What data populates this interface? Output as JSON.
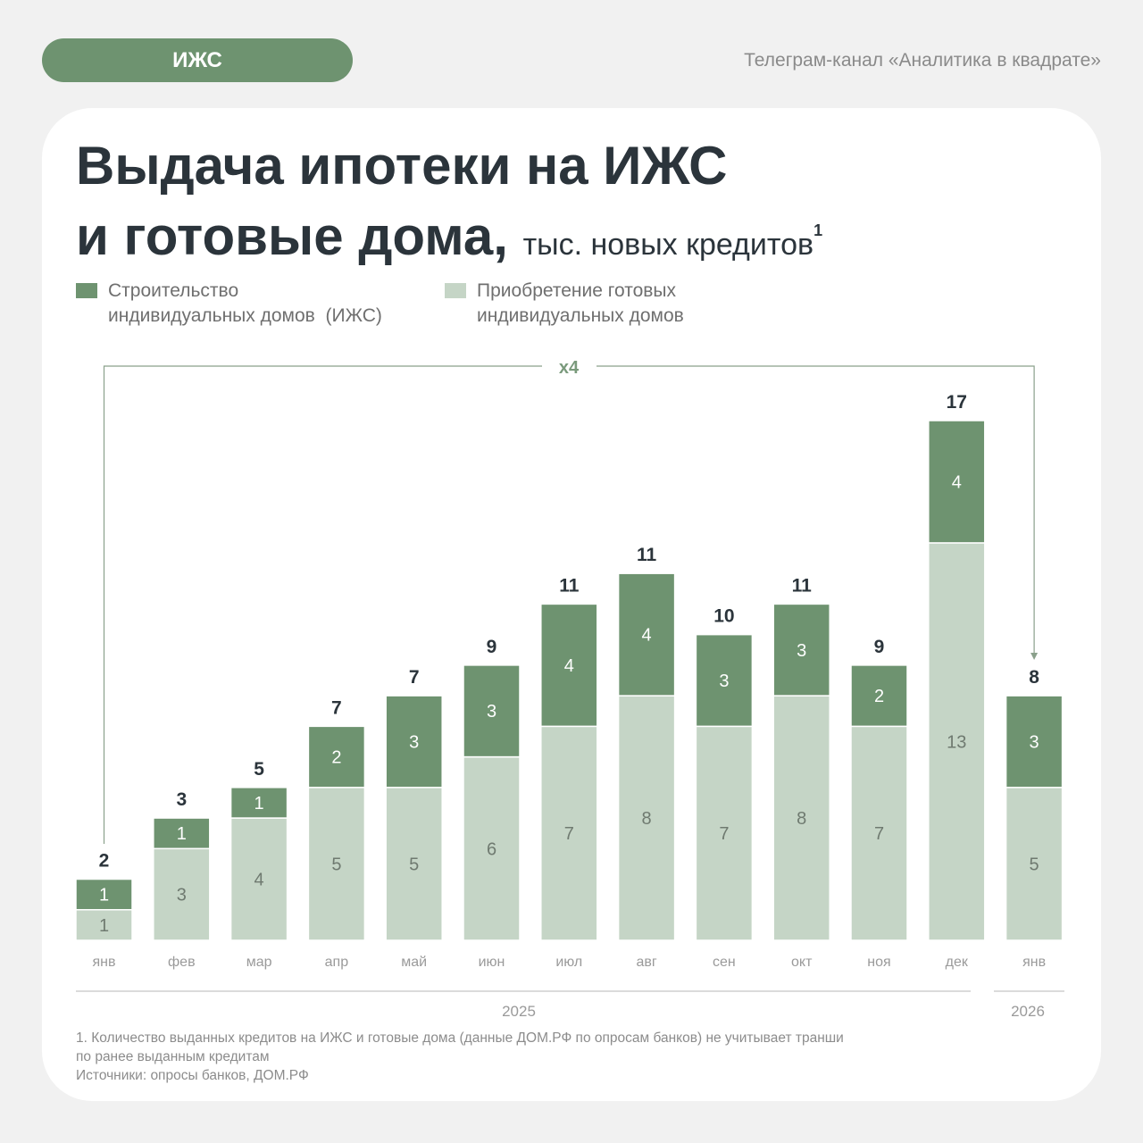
{
  "header": {
    "tag": "ИЖС",
    "channel": "Телеграм-канал «Аналитика в квадрате»"
  },
  "colors": {
    "construction": "#6e9370",
    "ready": "#c5d5c6",
    "text": "#2b343b"
  },
  "chart_data": {
    "type": "bar",
    "stacked": true,
    "title_line1": "Выдача ипотеки на ИЖС",
    "title_line2": "и готовые дома,",
    "unit": "тыс. новых кредитов",
    "unit_note": "1",
    "categories": [
      "янв",
      "фев",
      "мар",
      "апр",
      "май",
      "июн",
      "июл",
      "авг",
      "сен",
      "окт",
      "ноя",
      "дек",
      "янв"
    ],
    "years": [
      {
        "label": "2025",
        "span": 12
      },
      {
        "label": "2026",
        "span": 1
      }
    ],
    "series": [
      {
        "name": "Приобретение готовых индивидуальных домов",
        "legend_line1": "Приобретение готовых",
        "legend_line2": "индивидуальных домов",
        "values": [
          1,
          3,
          4,
          5,
          5,
          6,
          7,
          8,
          7,
          8,
          7,
          13,
          5
        ]
      },
      {
        "name": "Строительство индивидуальных домов (ИЖС)",
        "legend_line1": "Строительство",
        "legend_line2": "индивидуальных домов  (ИЖС)",
        "values": [
          1,
          1,
          1,
          2,
          3,
          3,
          4,
          4,
          3,
          3,
          2,
          4,
          3
        ]
      }
    ],
    "totals": [
      2,
      3,
      5,
      7,
      7,
      9,
      11,
      11,
      10,
      11,
      9,
      17,
      8
    ],
    "annotation": "x4",
    "ylim": [
      0,
      17
    ]
  },
  "footnote": {
    "line1": "1. Количество выданных кредитов на ИЖС и готовые дома (данные ДОМ.РФ по опросам банков) не учитывает транши",
    "line2": "по ранее выданным кредитам",
    "sources": "Источники: опросы банков, ДОМ.РФ"
  }
}
